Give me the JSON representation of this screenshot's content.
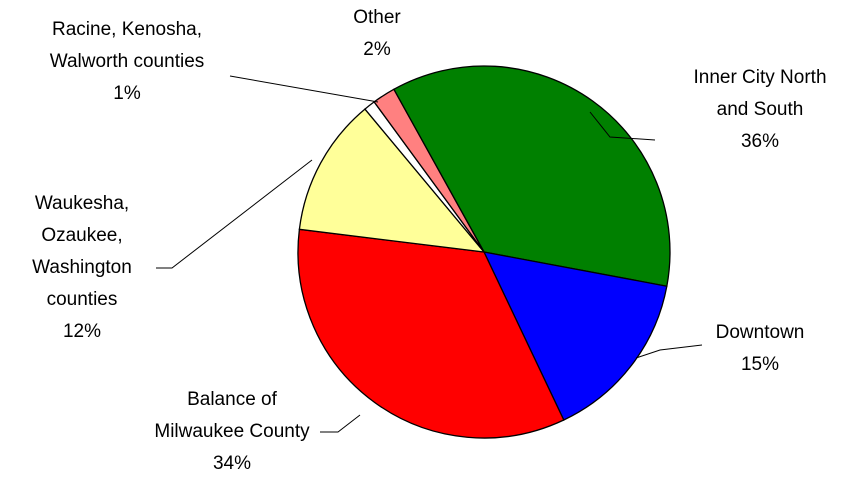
{
  "chart_data": {
    "type": "pie",
    "categories": [
      "Inner City North and South",
      "Downtown",
      "Balance of Milwaukee County",
      "Waukesha, Ozaukee, Washington counties",
      "Racine, Kenosha, Walworth counties",
      "Other"
    ],
    "values": [
      36,
      15,
      34,
      12,
      1,
      2
    ],
    "value_labels": [
      "36%",
      "15%",
      "34%",
      "12%",
      "1%",
      "2%"
    ],
    "colors": [
      "#008000",
      "#0000ff",
      "#ff0000",
      "#ffff99",
      "#ffffff",
      "#ff8080"
    ]
  }
}
